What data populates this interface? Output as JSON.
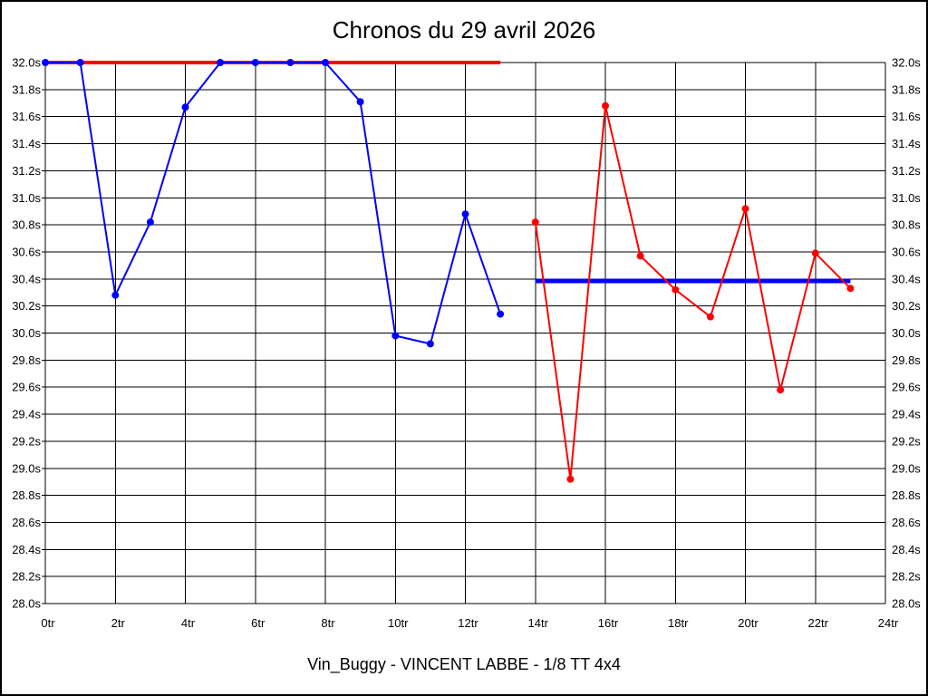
{
  "chart_data": {
    "type": "line",
    "title": "Chronos du 29 avril 2026",
    "footer": "Vin_Buggy - VINCENT LABBE - 1/8 TT 4x4",
    "xlabel": "",
    "ylabel": "",
    "x_unit": "tr",
    "y_unit": "s",
    "xlim": [
      0,
      24
    ],
    "ylim": [
      28.0,
      32.0
    ],
    "grid": true,
    "legend_position": "none",
    "colors": {
      "red": "#FF0000",
      "blue": "#0000FF",
      "grid": "#000000",
      "background": "#FFFFFF"
    },
    "x_ticks": [
      {
        "value": 0,
        "label": "0tr"
      },
      {
        "value": 2,
        "label": "2tr"
      },
      {
        "value": 4,
        "label": "4tr"
      },
      {
        "value": 6,
        "label": "6tr"
      },
      {
        "value": 8,
        "label": "8tr"
      },
      {
        "value": 10,
        "label": "10tr"
      },
      {
        "value": 12,
        "label": "12tr"
      },
      {
        "value": 14,
        "label": "14tr"
      },
      {
        "value": 16,
        "label": "16tr"
      },
      {
        "value": 18,
        "label": "18tr"
      },
      {
        "value": 20,
        "label": "20tr"
      },
      {
        "value": 22,
        "label": "22tr"
      },
      {
        "value": 24,
        "label": "24tr"
      }
    ],
    "y_ticks": [
      {
        "value": 32.0,
        "label": "32.0s"
      },
      {
        "value": 31.8,
        "label": "31.8s"
      },
      {
        "value": 31.6,
        "label": "31.6s"
      },
      {
        "value": 31.4,
        "label": "31.4s"
      },
      {
        "value": 31.2,
        "label": "31.2s"
      },
      {
        "value": 31.0,
        "label": "31.0s"
      },
      {
        "value": 30.8,
        "label": "30.8s"
      },
      {
        "value": 30.6,
        "label": "30.6s"
      },
      {
        "value": 30.4,
        "label": "30.4s"
      },
      {
        "value": 30.2,
        "label": "30.2s"
      },
      {
        "value": 30.0,
        "label": "30.0s"
      },
      {
        "value": 29.8,
        "label": "29.8s"
      },
      {
        "value": 29.6,
        "label": "29.6s"
      },
      {
        "value": 29.4,
        "label": "29.4s"
      },
      {
        "value": 29.2,
        "label": "29.2s"
      },
      {
        "value": 29.0,
        "label": "29.0s"
      },
      {
        "value": 28.8,
        "label": "28.8s"
      },
      {
        "value": 28.6,
        "label": "28.6s"
      },
      {
        "value": 28.4,
        "label": "28.4s"
      },
      {
        "value": 28.2,
        "label": "28.2s"
      },
      {
        "value": 28.0,
        "label": "28.0s"
      }
    ],
    "series": [
      {
        "name": "blue-lap-times",
        "color": "#0000FF",
        "laps": [
          0,
          1,
          2,
          3,
          4,
          5,
          6,
          7,
          8,
          9,
          10,
          11,
          12,
          13
        ],
        "times": [
          32.0,
          32.0,
          30.28,
          30.82,
          31.67,
          32.0,
          32.0,
          32.0,
          32.0,
          31.71,
          29.98,
          29.92,
          30.88,
          30.14
        ]
      },
      {
        "name": "red-lap-times",
        "color": "#FF0000",
        "laps": [
          14,
          15,
          16,
          17,
          18,
          19,
          20,
          21,
          22,
          23
        ],
        "times": [
          30.82,
          28.92,
          31.68,
          30.57,
          30.32,
          30.12,
          30.92,
          29.58,
          30.59,
          30.33
        ]
      }
    ],
    "reference_lines": [
      {
        "name": "red-reference-line",
        "color": "#FF0000",
        "value": 32.0,
        "from_lap": 0,
        "to_lap": 13,
        "thickness": 4
      },
      {
        "name": "blue-average-line",
        "color": "#0000FF",
        "value": 30.385,
        "from_lap": 14,
        "to_lap": 23,
        "thickness": 5
      }
    ]
  }
}
